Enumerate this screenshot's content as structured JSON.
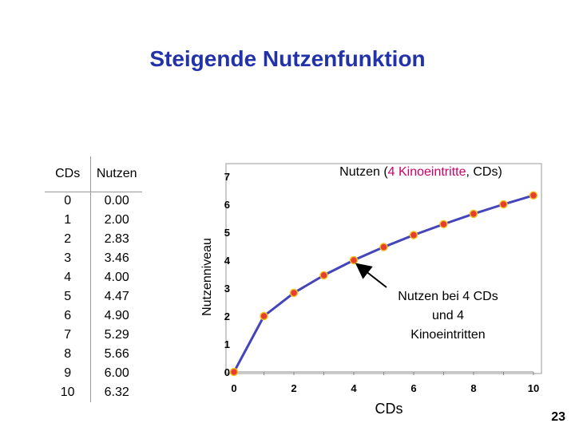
{
  "slide": {
    "title": "Steigende Nutzenfunktion",
    "page_number": "23"
  },
  "table": {
    "headers": [
      "CDs",
      "Nutzen"
    ],
    "rows": [
      [
        "0",
        "0.00"
      ],
      [
        "1",
        "2.00"
      ],
      [
        "2",
        "2.83"
      ],
      [
        "3",
        "3.46"
      ],
      [
        "4",
        "4.00"
      ],
      [
        "5",
        "4.47"
      ],
      [
        "6",
        "4.90"
      ],
      [
        "7",
        "5.29"
      ],
      [
        "8",
        "5.66"
      ],
      [
        "9",
        "6.00"
      ],
      [
        "10",
        "6.32"
      ]
    ]
  },
  "chart_data": {
    "type": "line",
    "title_parts": [
      "Nutzen (",
      "4 Kinoeintritte",
      ", CDs)"
    ],
    "xlabel": "CDs",
    "ylabel": "Nutzenniveau",
    "xlim": [
      0,
      10
    ],
    "ylim": [
      0,
      7
    ],
    "xticks": [
      0,
      2,
      4,
      6,
      8,
      10
    ],
    "yticks": [
      0,
      1,
      2,
      3,
      4,
      5,
      6,
      7
    ],
    "x": [
      0,
      1,
      2,
      3,
      4,
      5,
      6,
      7,
      8,
      9,
      10
    ],
    "y": [
      0.0,
      2.0,
      2.83,
      3.46,
      4.0,
      4.47,
      4.9,
      5.29,
      5.66,
      6.0,
      6.32
    ],
    "grid": false,
    "annotation": {
      "lines": [
        "Nutzen bei 4 CDs",
        "und 4",
        "Kinoeintritten"
      ],
      "target_x": 4,
      "target_y": 4.0
    },
    "colors": {
      "line": "#4444bb",
      "marker_fill": "#e63d2e",
      "marker_stroke": "#f0c020",
      "title_highlight": "#cc0066"
    }
  }
}
